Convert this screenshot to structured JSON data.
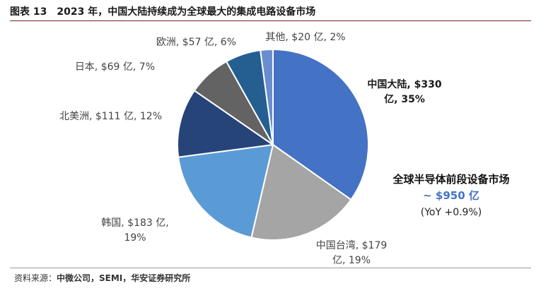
{
  "figure": {
    "number": "图表 13",
    "title": "2023 年，中国大陆持续成为全球最大的集成电路设备市场"
  },
  "source": {
    "prefix": "资料来源：",
    "text": "中微公司，SEMI，华安证券研究所"
  },
  "annotation": {
    "title": "全球半导体前段设备市场",
    "value": "~ $950 亿",
    "yoy": "(YoY +0.9%)"
  },
  "chart_data": {
    "type": "pie",
    "title": "",
    "start": "top",
    "direction": "clockwise",
    "slices": [
      {
        "name": "中国大陆",
        "value": 330,
        "pct": 35,
        "color": "#4472c4",
        "label_lines": [
          "中国大陆, $330",
          "亿, 35%"
        ],
        "label_style": "strong"
      },
      {
        "name": "中国台湾",
        "value": 179,
        "pct": 19,
        "color": "#a5a5a5",
        "label_lines": [
          "中国台湾, $179",
          "亿, 19%"
        ],
        "label_style": "normal"
      },
      {
        "name": "韩国",
        "value": 183,
        "pct": 19,
        "color": "#5b9bd5",
        "label_lines": [
          "韩国, $183 亿,",
          "19%"
        ],
        "label_style": "normal"
      },
      {
        "name": "北美洲",
        "value": 111,
        "pct": 12,
        "color": "#264478",
        "label_lines": [
          "北美洲, $111 亿, 12%"
        ],
        "label_style": "normal"
      },
      {
        "name": "日本",
        "value": 69,
        "pct": 7,
        "color": "#636363",
        "label_lines": [
          "日本, $69 亿, 7%"
        ],
        "label_style": "normal"
      },
      {
        "name": "欧洲",
        "value": 57,
        "pct": 6,
        "color": "#255e91",
        "label_lines": [
          "欧洲, $57 亿, 6%"
        ],
        "label_style": "normal"
      },
      {
        "name": "其他",
        "value": 20,
        "pct": 2,
        "color": "#698ed0",
        "label_lines": [
          "其他, $20 亿, 2%"
        ],
        "label_style": "normal"
      }
    ]
  }
}
